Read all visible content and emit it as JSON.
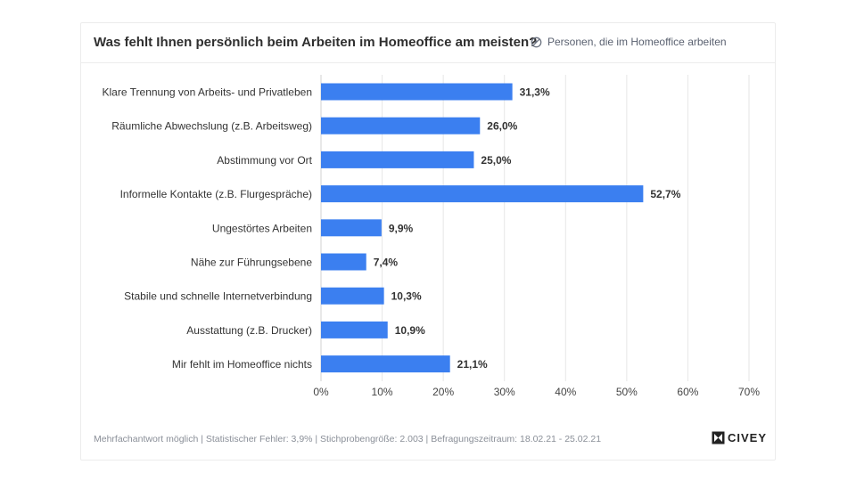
{
  "header": {
    "title": "Was fehlt Ihnen persönlich beim Arbeiten im Homeoffice am meisten?",
    "subtitle": "Personen, die im Homeoffice arbeiten"
  },
  "footer": {
    "note": "Mehrfachantwort möglich | Statistischer Fehler: 3,9% | Stichprobengröße: 2.003 | Befragungszeitraum: 18.02.21 - 25.02.21"
  },
  "logo": {
    "text": "CIVEY"
  },
  "colors": {
    "bar": "#3b7ff0",
    "grid": "#e6e6e6",
    "label": "#333333"
  },
  "chart_data": {
    "type": "bar",
    "orientation": "horizontal",
    "categories": [
      "Klare Trennung von Arbeits- und Privatleben",
      "Räumliche Abwechslung (z.B. Arbeitsweg)",
      "Abstimmung vor Ort",
      "Informelle Kontakte (z.B. Flurgespräche)",
      "Ungestörtes Arbeiten",
      "Nähe zur Führungsebene",
      "Stabile und schnelle Internetverbindung",
      "Ausstattung (z.B. Drucker)",
      "Mir fehlt im Homeoffice nichts"
    ],
    "values": [
      31.3,
      26.0,
      25.0,
      52.7,
      9.9,
      7.4,
      10.3,
      10.9,
      21.1
    ],
    "value_labels": [
      "31,3%",
      "26,0%",
      "25,0%",
      "52,7%",
      "9,9%",
      "7,4%",
      "10,3%",
      "10,9%",
      "21,1%"
    ],
    "xlim": [
      0,
      70
    ],
    "xticks": [
      0,
      10,
      20,
      30,
      40,
      50,
      60,
      70
    ],
    "xtick_labels": [
      "0%",
      "10%",
      "20%",
      "30%",
      "40%",
      "50%",
      "60%",
      "70%"
    ],
    "grid": true,
    "legend": "none"
  }
}
